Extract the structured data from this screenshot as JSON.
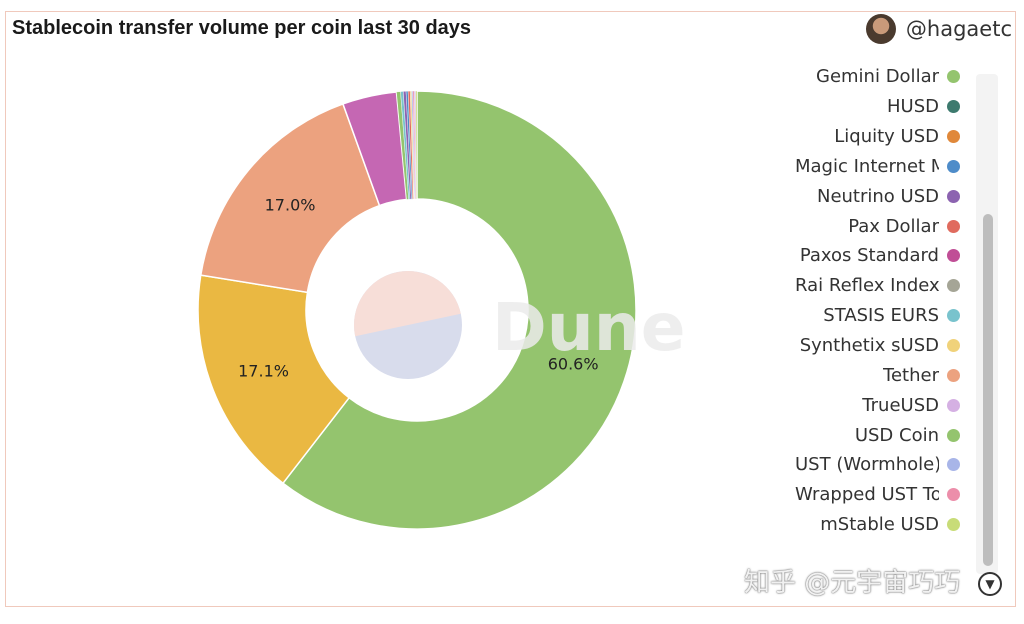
{
  "header": {
    "title": "Stablecoin transfer volume per coin last 30 days",
    "author": "@hagaetc"
  },
  "watermark": {
    "brand": "Dune",
    "caption": "知乎 @元宇宙巧巧"
  },
  "colors": {
    "accent_border": "#f0c9bc"
  },
  "chart_data": {
    "type": "pie",
    "donut": true,
    "legend_position": "right",
    "slices": [
      {
        "name": "USD Coin",
        "value": 60.6,
        "label": "60.6%",
        "color": "#94c46e"
      },
      {
        "name": "",
        "value": 17.1,
        "label": "17.1%",
        "color": "#eab842"
      },
      {
        "name": "Tether",
        "value": 17.0,
        "label": "17.0%",
        "color": "#eca27f"
      },
      {
        "name": "",
        "value": 4.0,
        "label": "",
        "color": "#c567b3"
      },
      {
        "name": "",
        "value": 0.3,
        "label": "",
        "color": "#94c46e"
      },
      {
        "name": "",
        "value": 0.2,
        "label": "",
        "color": "#79c3cd"
      },
      {
        "name": "",
        "value": 0.2,
        "label": "",
        "color": "#8c63b0"
      },
      {
        "name": "",
        "value": 0.15,
        "label": "",
        "color": "#4e8cc9"
      },
      {
        "name": "",
        "value": 0.15,
        "label": "",
        "color": "#e06b5e"
      },
      {
        "name": "",
        "value": 0.1,
        "label": "",
        "color": "#e8d07a"
      },
      {
        "name": "",
        "value": 0.1,
        "label": "",
        "color": "#a8b5e8"
      },
      {
        "name": "",
        "value": 0.1,
        "label": "",
        "color": "#ec8eaa"
      },
      {
        "name": "",
        "value": 0.1,
        "label": "",
        "color": "#d5b0e3"
      },
      {
        "name": "",
        "value": 0.1,
        "label": "",
        "color": "#c8dc78"
      }
    ],
    "legend": [
      {
        "label": "Gemini Dollar",
        "color": "#94c46e"
      },
      {
        "label": "HUSD",
        "color": "#3d7a6e"
      },
      {
        "label": "Liquity USD",
        "color": "#e0883a"
      },
      {
        "label": "Magic Internet Money",
        "color": "#4e8cc9"
      },
      {
        "label": "Neutrino USD",
        "color": "#8c63b0"
      },
      {
        "label": "Pax Dollar",
        "color": "#e06b5e"
      },
      {
        "label": "Paxos Standard",
        "color": "#c04e96"
      },
      {
        "label": "Rai Reflex Index",
        "color": "#a5a596"
      },
      {
        "label": "STASIS EURS",
        "color": "#79c3cd"
      },
      {
        "label": "Synthetix sUSD",
        "color": "#f0d27a"
      },
      {
        "label": "Tether",
        "color": "#eca27f"
      },
      {
        "label": "TrueUSD",
        "color": "#d5b0e3"
      },
      {
        "label": "USD Coin",
        "color": "#94c46e"
      },
      {
        "label": "UST (Wormhole)",
        "color": "#a8b5e8"
      },
      {
        "label": "Wrapped UST Token",
        "color": "#ec8eaa"
      },
      {
        "label": "mStable USD",
        "color": "#c8dc78"
      }
    ]
  }
}
